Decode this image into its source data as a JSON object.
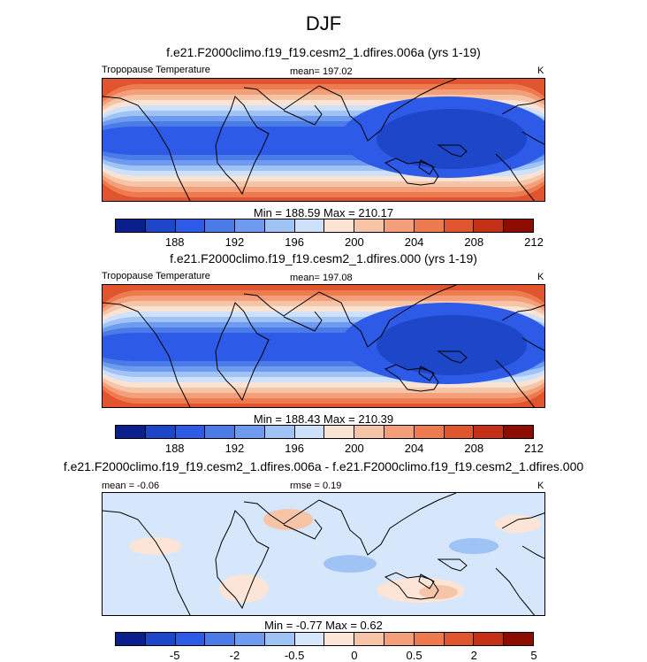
{
  "header": {
    "season": "DJF"
  },
  "colors": {
    "temperature_scale": [
      "#0a1e8c",
      "#1e46c8",
      "#2d5ae6",
      "#4b7be6",
      "#6e9af0",
      "#a0c3f5",
      "#cfe1fa",
      "#fbe3d4",
      "#f6c5a8",
      "#f3a07a",
      "#ee7a50",
      "#e0552e",
      "#c33015",
      "#8c0d00"
    ],
    "difference_scale": [
      "#0a1e8c",
      "#1e46c8",
      "#2d5ae6",
      "#4b7be6",
      "#6e9af0",
      "#a0c3f5",
      "#d6e6fb",
      "#fce4d6",
      "#f6c5a8",
      "#f3a07a",
      "#ee7a50",
      "#e0552e",
      "#c33015",
      "#8c0d00"
    ]
  },
  "chart_data": [
    {
      "type": "heatmap",
      "title": "f.e21.F2000climo.f19_f19.cesm2_1.dfires.006a (yrs 1-19)",
      "left_label": "Tropopause Temperature",
      "mean_text": "mean= 197.02",
      "units": "K",
      "stats_text": "Min = 188.59 Max = 210.17",
      "min": 188.59,
      "max": 210.17,
      "mean": 197.02,
      "colorbar_ticks": [
        "188",
        "192",
        "196",
        "200",
        "204",
        "208",
        "212"
      ],
      "contour_levels": [
        186,
        188,
        190,
        192,
        194,
        196,
        198,
        200,
        202,
        204,
        206,
        208,
        210,
        212,
        214
      ]
    },
    {
      "type": "heatmap",
      "title": "f.e21.F2000climo.f19_f19.cesm2_1.dfires.000 (yrs 1-19)",
      "left_label": "Tropopause Temperature",
      "mean_text": "mean= 197.08",
      "units": "K",
      "stats_text": "Min = 188.43 Max = 210.39",
      "min": 188.43,
      "max": 210.39,
      "mean": 197.08,
      "colorbar_ticks": [
        "188",
        "192",
        "196",
        "200",
        "204",
        "208",
        "212"
      ],
      "contour_levels": [
        186,
        188,
        190,
        192,
        194,
        196,
        198,
        200,
        202,
        204,
        206,
        208,
        210,
        212,
        214
      ]
    },
    {
      "type": "heatmap",
      "title": "f.e21.F2000climo.f19_f19.cesm2_1.dfires.006a - f.e21.F2000climo.f19_f19.cesm2_1.dfires.000",
      "left_label": "mean =  -0.06",
      "mean_text": "rmse =  0.19",
      "units": "K",
      "stats_text": "Min =  -0.77 Max =   0.62",
      "min": -0.77,
      "max": 0.62,
      "mean": -0.06,
      "rmse": 0.19,
      "colorbar_ticks": [
        "-5",
        "-2",
        "-0.5",
        "0",
        "0.5",
        "2",
        "5"
      ],
      "contour_levels": [
        -8,
        -5,
        -3,
        -2,
        -1,
        -0.5,
        -0.25,
        0,
        0.25,
        0.5,
        1,
        2,
        3,
        5,
        8
      ]
    }
  ]
}
